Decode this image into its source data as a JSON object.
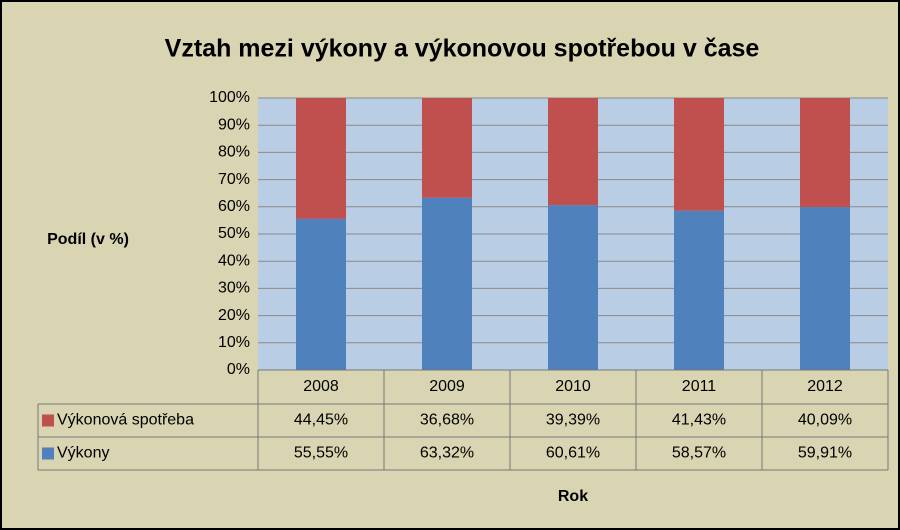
{
  "chart_data": {
    "type": "stacked_bar_100",
    "title": "Vztah mezi výkony a výkonovou spotřebou v čase",
    "y_label": "Podíl (v %)",
    "x_label": "Rok",
    "categories": [
      "2008",
      "2009",
      "2010",
      "2011",
      "2012"
    ],
    "series": [
      {
        "name": "Výkonová spotřeba",
        "color": "#c0504d",
        "values": [
          44.45,
          36.68,
          39.39,
          41.43,
          40.09
        ],
        "value_labels": [
          "44,45%",
          "36,68%",
          "39,39%",
          "41,43%",
          "40,09%"
        ]
      },
      {
        "name": "Výkony",
        "color": "#4f81bd",
        "values": [
          55.55,
          63.32,
          60.61,
          58.57,
          59.91
        ],
        "value_labels": [
          "55,55%",
          "63,32%",
          "60,61%",
          "58,57%",
          "59,91%"
        ]
      }
    ],
    "ylim": [
      0,
      100
    ],
    "yticks": [
      {
        "value": 0,
        "label": "0%"
      },
      {
        "value": 10,
        "label": "10%"
      },
      {
        "value": 20,
        "label": "20%"
      },
      {
        "value": 30,
        "label": "30%"
      },
      {
        "value": 40,
        "label": "40%"
      },
      {
        "value": 50,
        "label": "50%"
      },
      {
        "value": 60,
        "label": "60%"
      },
      {
        "value": 70,
        "label": "70%"
      },
      {
        "value": 80,
        "label": "80%"
      },
      {
        "value": 90,
        "label": "90%"
      },
      {
        "value": 100,
        "label": "100%"
      }
    ],
    "grid": true
  }
}
